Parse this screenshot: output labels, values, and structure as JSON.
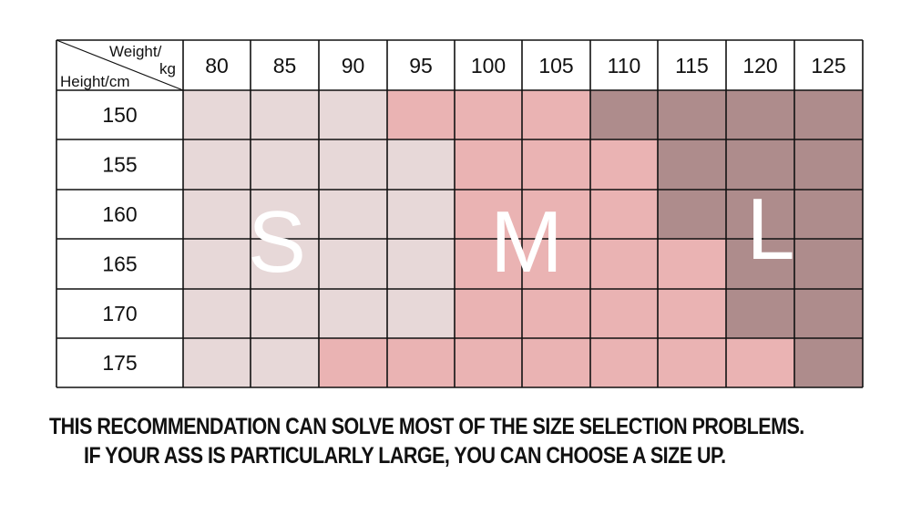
{
  "header_corner": {
    "top": "Weight/",
    "top2": "kg",
    "bottom": "Height/cm"
  },
  "weights": [
    "80",
    "85",
    "90",
    "95",
    "100",
    "105",
    "110",
    "115",
    "120",
    "125"
  ],
  "heights": [
    "150",
    "155",
    "160",
    "165",
    "170",
    "175"
  ],
  "size_grid": [
    [
      "S",
      "S",
      "S",
      "M",
      "M",
      "M",
      "L",
      "L",
      "L",
      "L"
    ],
    [
      "S",
      "S",
      "S",
      "S",
      "M",
      "M",
      "M",
      "L",
      "L",
      "L"
    ],
    [
      "S",
      "S",
      "S",
      "S",
      "M",
      "M",
      "M",
      "L",
      "L",
      "L"
    ],
    [
      "S",
      "S",
      "S",
      "S",
      "M",
      "M",
      "M",
      "M",
      "L",
      "L"
    ],
    [
      "S",
      "S",
      "S",
      "S",
      "M",
      "M",
      "M",
      "M",
      "L",
      "L"
    ],
    [
      "S",
      "S",
      "M",
      "M",
      "M",
      "M",
      "M",
      "M",
      "M",
      "L"
    ]
  ],
  "size_labels": {
    "S": "S",
    "M": "M",
    "L": "L"
  },
  "colors": {
    "S": "#e7d8d8",
    "M": "#eab3b3",
    "L": "#ae8c8c",
    "grid_line": "#111111",
    "label_text": "#ffffff"
  },
  "notes": {
    "line1": "THIS RECOMMENDATION CAN SOLVE MOST OF THE SIZE SELECTION PROBLEMS.",
    "line2": "IF YOUR ASS IS PARTICULARLY LARGE, YOU CAN CHOOSE A SIZE UP."
  }
}
